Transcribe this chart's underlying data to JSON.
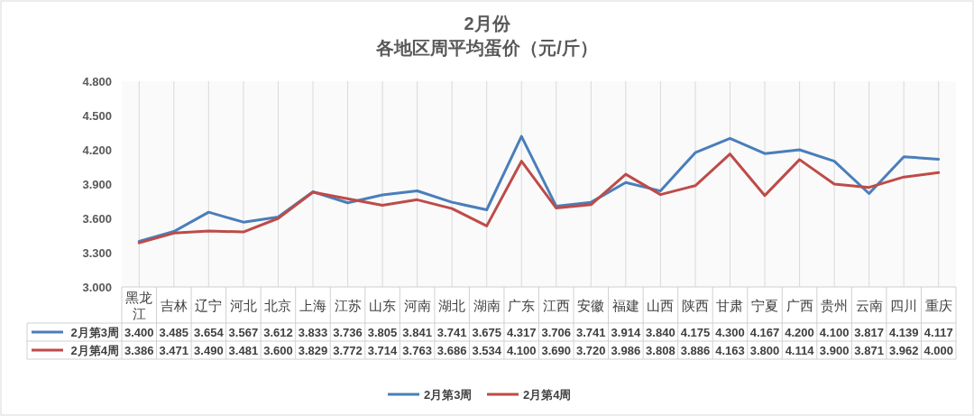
{
  "chart_data": {
    "type": "line",
    "title": "2月份",
    "subtitle": "各地区周平均蛋价（元/斤）",
    "categories": [
      "黑龙江",
      "吉林",
      "辽宁",
      "河北",
      "北京",
      "上海",
      "江苏",
      "山东",
      "河南",
      "湖北",
      "湖南",
      "广东",
      "江西",
      "安徽",
      "福建",
      "山西",
      "陕西",
      "甘肃",
      "宁夏",
      "广西",
      "贵州",
      "云南",
      "四川",
      "重庆"
    ],
    "series": [
      {
        "name": "2月第3周",
        "color": "#4a7ebb",
        "values": [
          3.4,
          3.485,
          3.654,
          3.567,
          3.612,
          3.833,
          3.736,
          3.805,
          3.841,
          3.741,
          3.675,
          4.317,
          3.706,
          3.741,
          3.914,
          3.84,
          4.175,
          4.3,
          4.167,
          4.2,
          4.1,
          3.817,
          4.139,
          4.117
        ],
        "value_labels": [
          "3.400",
          "3.485",
          "3.654",
          "3.567",
          "3.612",
          "3.833",
          "3.736",
          "3.805",
          "3.841",
          "3.741",
          "3.675",
          "4.317",
          "3.706",
          "3.741",
          "3.914",
          "3.840",
          "4.175",
          "4.300",
          "4.167",
          "4.200",
          "4.100",
          "3.817",
          "4.139",
          "4.117"
        ]
      },
      {
        "name": "2月第4周",
        "color": "#be4b48",
        "values": [
          3.386,
          3.471,
          3.49,
          3.481,
          3.6,
          3.829,
          3.772,
          3.714,
          3.763,
          3.686,
          3.534,
          4.1,
          3.69,
          3.72,
          3.986,
          3.808,
          3.886,
          4.163,
          3.8,
          4.114,
          3.9,
          3.871,
          3.962,
          4.0
        ],
        "value_labels": [
          "3.386",
          "3.471",
          "3.490",
          "3.481",
          "3.600",
          "3.829",
          "3.772",
          "3.714",
          "3.763",
          "3.686",
          "3.534",
          "4.100",
          "3.690",
          "3.720",
          "3.986",
          "3.808",
          "3.886",
          "4.163",
          "3.800",
          "4.114",
          "3.900",
          "3.871",
          "3.962",
          "4.000"
        ]
      }
    ],
    "ylim": [
      3.0,
      4.8
    ],
    "yticks": [
      {
        "value": 3.0,
        "label": "3.000"
      },
      {
        "value": 3.3,
        "label": "3.300"
      },
      {
        "value": 3.6,
        "label": "3.600"
      },
      {
        "value": 3.9,
        "label": "3.900"
      },
      {
        "value": 4.2,
        "label": "4.200"
      },
      {
        "value": 4.5,
        "label": "4.500"
      },
      {
        "value": 4.8,
        "label": "4.800"
      }
    ],
    "grid": "x",
    "legend": "bottom",
    "marker": "none",
    "line_style": "solid"
  }
}
